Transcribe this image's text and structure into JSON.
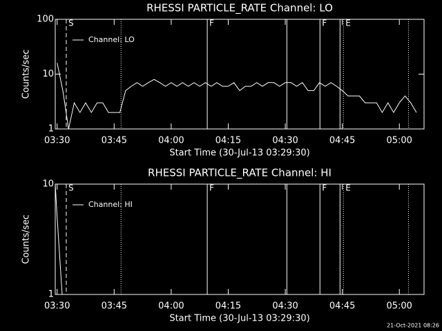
{
  "chart_data": [
    {
      "type": "line",
      "title": "RHESSI PARTICLE_RATE Channel: LO",
      "ylabel": "Counts/sec",
      "xlabel": "Start Time (30-Jul-13 03:29:30)",
      "log_y": true,
      "ylim": [
        1,
        100
      ],
      "yticks": [
        1,
        10,
        100
      ],
      "xlim": [
        3.4917,
        5.1083
      ],
      "xticks": [
        {
          "value": 3.5,
          "label": "03:30"
        },
        {
          "value": 3.75,
          "label": "03:45"
        },
        {
          "value": 4,
          "label": "04:00"
        },
        {
          "value": 4.25,
          "label": "04:15"
        },
        {
          "value": 4.5,
          "label": "04:30"
        },
        {
          "value": 4.75,
          "label": "04:45"
        },
        {
          "value": 5,
          "label": "05:00"
        }
      ],
      "x": [
        3.5,
        3.525,
        3.55,
        3.575,
        3.6,
        3.625,
        3.65,
        3.675,
        3.7,
        3.725,
        3.75,
        3.775,
        3.8,
        3.825,
        3.85,
        3.875,
        3.9,
        3.925,
        3.95,
        3.975,
        4.0,
        4.025,
        4.05,
        4.075,
        4.1,
        4.125,
        4.15,
        4.175,
        4.2,
        4.225,
        4.25,
        4.275,
        4.3,
        4.325,
        4.35,
        4.375,
        4.4,
        4.425,
        4.45,
        4.475,
        4.5,
        4.525,
        4.55,
        4.575,
        4.6,
        4.625,
        4.65,
        4.675,
        4.7,
        4.725,
        4.75,
        4.775,
        4.8,
        4.825,
        4.85,
        4.875,
        4.9,
        4.925,
        4.95,
        4.975,
        5.0,
        5.025,
        5.05,
        5.075
      ],
      "series": [
        {
          "name": "Channel: LO",
          "color": "#ffffff",
          "values": [
            16,
            5,
            1,
            3,
            2,
            3,
            2,
            3,
            3,
            2,
            2,
            2,
            5,
            6,
            7,
            6,
            7,
            8,
            7,
            6,
            7,
            6,
            7,
            6,
            7,
            6,
            7,
            6,
            7,
            6,
            6,
            7,
            5,
            6,
            6,
            7,
            6,
            7,
            7,
            6,
            7,
            7,
            6,
            7,
            5,
            5,
            7,
            6,
            7,
            6,
            5,
            4,
            4,
            4,
            3,
            3,
            3,
            2,
            3,
            2,
            3,
            4,
            3,
            2
          ]
        }
      ],
      "annotations": [
        {
          "x": 3.54,
          "label": "S",
          "style": "dashed"
        },
        {
          "x": 3.78,
          "style": "dotted"
        },
        {
          "x": 4.158,
          "label": "F",
          "style": "solid"
        },
        {
          "x": 4.507,
          "style": "solid"
        },
        {
          "x": 4.652,
          "label": "F",
          "style": "solid"
        },
        {
          "x": 4.74,
          "style": "solid"
        },
        {
          "x": 4.755,
          "label": "E",
          "style": "dotted"
        },
        {
          "x": 5.04,
          "style": "dotted"
        }
      ]
    },
    {
      "type": "line",
      "title": "RHESSI PARTICLE_RATE Channel: HI",
      "ylabel": "Counts/sec",
      "xlabel": "Start Time (30-Jul-13 03:29:30)",
      "log_y": true,
      "ylim": [
        1,
        10
      ],
      "yticks": [
        1,
        10
      ],
      "xlim": [
        3.4917,
        5.1083
      ],
      "xticks": [
        {
          "value": 3.5,
          "label": "03:30"
        },
        {
          "value": 3.75,
          "label": "03:45"
        },
        {
          "value": 4,
          "label": "04:00"
        },
        {
          "value": 4.25,
          "label": "04:15"
        },
        {
          "value": 4.5,
          "label": "04:30"
        },
        {
          "value": 4.75,
          "label": "04:45"
        },
        {
          "value": 5,
          "label": "05:00"
        }
      ],
      "x": [
        3.4917,
        3.5,
        3.522
      ],
      "series": [
        {
          "name": "Channel: HI",
          "color": "#ffffff",
          "values": [
            10,
            5,
            1
          ]
        }
      ],
      "annotations": [
        {
          "x": 3.54,
          "label": "S",
          "style": "dashed"
        },
        {
          "x": 3.78,
          "style": "dotted"
        },
        {
          "x": 4.158,
          "label": "F",
          "style": "solid"
        },
        {
          "x": 4.507,
          "style": "solid"
        },
        {
          "x": 4.652,
          "label": "F",
          "style": "solid"
        },
        {
          "x": 4.74,
          "style": "solid"
        },
        {
          "x": 4.755,
          "label": "E",
          "style": "dotted"
        },
        {
          "x": 5.04,
          "style": "dotted"
        }
      ]
    }
  ],
  "footer": "21-Oct-2021 08:26"
}
